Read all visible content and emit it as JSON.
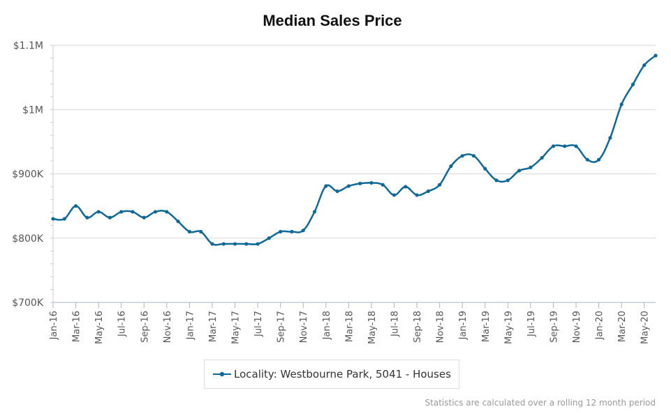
{
  "chart_data": {
    "type": "line",
    "title": "Median Sales Price",
    "xlabel": "",
    "ylabel": "",
    "ylim": [
      700000,
      1100000
    ],
    "y_ticks": [
      700000,
      800000,
      900000,
      1000000,
      1100000
    ],
    "y_tick_labels": [
      "$700K",
      "$800K",
      "$900K",
      "$1M",
      "$1.1M"
    ],
    "x_tick_labels": [
      "Jan-16",
      "Mar-16",
      "May-16",
      "Jul-16",
      "Sep-16",
      "Nov-16",
      "Jan-17",
      "Mar-17",
      "May-17",
      "Jul-17",
      "Sep-17",
      "Nov-17",
      "Jan-18",
      "Mar-18",
      "May-18",
      "Jul-18",
      "Sep-18",
      "Nov-18",
      "Jan-19",
      "Mar-19",
      "May-19",
      "Jul-19",
      "Sep-19",
      "Nov-19",
      "Jan-20",
      "Mar-20",
      "May-20"
    ],
    "x": [
      "Jan-16",
      "Feb-16",
      "Mar-16",
      "Apr-16",
      "May-16",
      "Jun-16",
      "Jul-16",
      "Aug-16",
      "Sep-16",
      "Oct-16",
      "Nov-16",
      "Dec-16",
      "Jan-17",
      "Feb-17",
      "Mar-17",
      "Apr-17",
      "May-17",
      "Jun-17",
      "Jul-17",
      "Aug-17",
      "Sep-17",
      "Oct-17",
      "Nov-17",
      "Dec-17",
      "Jan-18",
      "Feb-18",
      "Mar-18",
      "Apr-18",
      "May-18",
      "Jun-18",
      "Jul-18",
      "Aug-18",
      "Sep-18",
      "Oct-18",
      "Nov-18",
      "Dec-18",
      "Jan-19",
      "Feb-19",
      "Mar-19",
      "Apr-19",
      "May-19",
      "Jun-19",
      "Jul-19",
      "Aug-19",
      "Sep-19",
      "Oct-19",
      "Nov-19",
      "Dec-19",
      "Jan-20",
      "Feb-20",
      "Mar-20",
      "Apr-20",
      "May-20",
      "Jun-20"
    ],
    "series": [
      {
        "name": "Locality: Westbourne Park, 5041 - Houses",
        "color": "#0f6896",
        "values": [
          830000,
          830000,
          850000,
          832000,
          841000,
          832000,
          841000,
          841000,
          832000,
          841000,
          841000,
          826000,
          810000,
          810000,
          791000,
          791000,
          791000,
          791000,
          791000,
          800000,
          810000,
          810000,
          812000,
          841000,
          881000,
          873000,
          881000,
          885000,
          886000,
          883000,
          867000,
          880000,
          867000,
          873000,
          883000,
          912000,
          928000,
          928000,
          908000,
          890000,
          890000,
          905000,
          910000,
          925000,
          943000,
          943000,
          943000,
          922000,
          922000,
          956000,
          1008000,
          1039000,
          1069000,
          1084000
        ]
      }
    ],
    "grid": true,
    "legend_position": "bottom-center"
  },
  "footnote": "Statistics are calculated over a rolling 12 month period"
}
